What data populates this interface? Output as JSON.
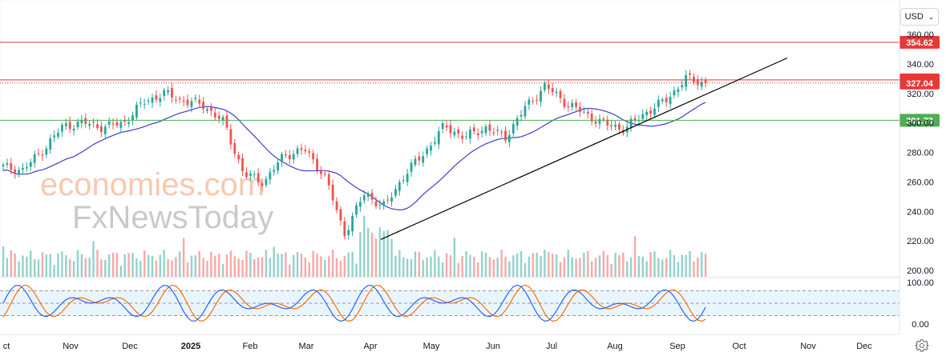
{
  "currency_selector": {
    "label": "USD",
    "icon": "chevron-down-icon"
  },
  "settings": {
    "icon": "gear-icon"
  },
  "watermark": {
    "line1": "economies.com",
    "line2": "FxNewsToday"
  },
  "colors": {
    "up": "#26a69a",
    "down": "#ef5350",
    "ma": "#3f3fd1",
    "resistance": "#e53935",
    "support": "#4caf50",
    "trend": "#000000",
    "stoch_k": "#2962ff",
    "stoch_d": "#ff6d00",
    "stoch_band": "#e3f2fd"
  },
  "chart_data": [
    {
      "type": "candlestick",
      "x_tick_labels": [
        "ct",
        "Nov",
        "Dec",
        "2025",
        "Feb",
        "Mar",
        "Apr",
        "May",
        "Jun",
        "Jul",
        "Aug",
        "Sep",
        "Oct",
        "Nov",
        "Dec"
      ],
      "y_tick_labels": [
        "200.00",
        "220.00",
        "240.00",
        "260.00",
        "280.00",
        "300.00",
        "320.00",
        "340.00",
        "360.00"
      ],
      "ylim": [
        200,
        365
      ],
      "grid": false,
      "horizontal_levels": [
        {
          "label": "354.62",
          "value": 354.62,
          "color": "#e53935",
          "style": "solid"
        },
        {
          "label": "329.14",
          "value": 329.14,
          "color": "#e53935",
          "style": "solid"
        },
        {
          "label": "327.04",
          "value": 327.04,
          "color": "#e53935",
          "style": "dotted"
        },
        {
          "label": "301.73",
          "value": 301.73,
          "color": "#4caf50",
          "style": "solid"
        }
      ],
      "trendline": {
        "from": [
          "Apr 8",
          221
        ],
        "to": [
          "Oct 17",
          344
        ]
      },
      "close_anchors": [
        [
          "Oct",
          270
        ],
        [
          "Nov",
          268
        ],
        [
          "Nov",
          282
        ],
        [
          "Dec",
          298
        ],
        [
          "Dec",
          300
        ],
        [
          "2025",
          297
        ],
        [
          "2025",
          300
        ],
        [
          "Jan",
          314
        ],
        [
          "Jan",
          320
        ],
        [
          "Feb",
          315
        ],
        [
          "Feb",
          312
        ],
        [
          "Mar",
          300
        ],
        [
          "Mar",
          265
        ],
        [
          "Mar",
          260
        ],
        [
          "Mar",
          278
        ],
        [
          "Apr",
          282
        ],
        [
          "Apr",
          265
        ],
        [
          "Apr",
          225
        ],
        [
          "Apr",
          252
        ],
        [
          "Apr",
          243
        ],
        [
          "May",
          265
        ],
        [
          "May",
          280
        ],
        [
          "May",
          298
        ],
        [
          "Jun",
          290
        ],
        [
          "Jun",
          297
        ],
        [
          "Jun",
          290
        ],
        [
          "Jul",
          310
        ],
        [
          "Jul",
          325
        ],
        [
          "Jul",
          314
        ],
        [
          "Aug",
          306
        ],
        [
          "Aug",
          299
        ],
        [
          "Aug",
          296
        ],
        [
          "Aug",
          307
        ],
        [
          "Sep",
          315
        ],
        [
          "Sep",
          330
        ],
        [
          "Sep",
          327
        ]
      ],
      "moving_average": {
        "start": 252,
        "peak": 306,
        "trough": 268,
        "end": 316
      }
    },
    {
      "type": "bar",
      "name": "volume",
      "relative_heights": "varies; spike near early April"
    },
    {
      "type": "line",
      "name": "stochastic",
      "y_tick_labels": [
        "100.00",
        "0.00"
      ],
      "band": [
        20,
        80
      ],
      "ylim": [
        0,
        100
      ]
    }
  ]
}
